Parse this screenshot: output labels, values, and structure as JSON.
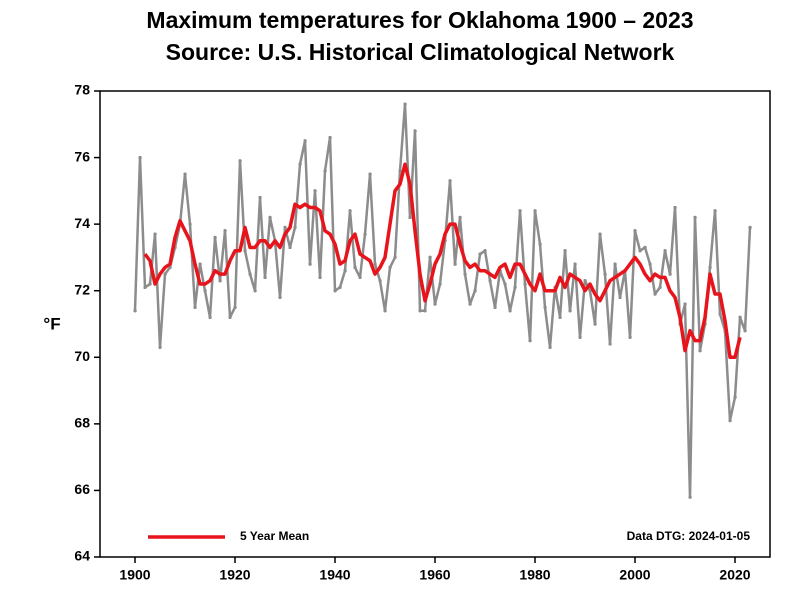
{
  "chart_data": {
    "type": "line",
    "title": "Maximum temperatures for Oklahoma 1900 – 2023",
    "subtitle": "Source: U.S. Historical Climatological Network",
    "y_label": "°F",
    "annotation": "Data DTG: 2024-01-05",
    "legend": "bottom-left",
    "grid": false,
    "xlim": [
      1893,
      2027
    ],
    "xticks": [
      1900,
      1920,
      1940,
      1960,
      1980,
      2000,
      2020
    ],
    "ylim": [
      64,
      78
    ],
    "yticks": [
      64,
      66,
      68,
      70,
      72,
      74,
      76,
      78
    ],
    "x": [
      1900,
      1901,
      1902,
      1903,
      1904,
      1905,
      1906,
      1907,
      1908,
      1909,
      1910,
      1911,
      1912,
      1913,
      1914,
      1915,
      1916,
      1917,
      1918,
      1919,
      1920,
      1921,
      1922,
      1923,
      1924,
      1925,
      1926,
      1927,
      1928,
      1929,
      1930,
      1931,
      1932,
      1933,
      1934,
      1935,
      1936,
      1937,
      1938,
      1939,
      1940,
      1941,
      1942,
      1943,
      1944,
      1945,
      1946,
      1947,
      1948,
      1949,
      1950,
      1951,
      1952,
      1953,
      1954,
      1955,
      1956,
      1957,
      1958,
      1959,
      1960,
      1961,
      1962,
      1963,
      1964,
      1965,
      1966,
      1967,
      1968,
      1969,
      1970,
      1971,
      1972,
      1973,
      1974,
      1975,
      1976,
      1977,
      1978,
      1979,
      1980,
      1981,
      1982,
      1983,
      1984,
      1985,
      1986,
      1987,
      1988,
      1989,
      1990,
      1991,
      1992,
      1993,
      1994,
      1995,
      1996,
      1997,
      1998,
      1999,
      2000,
      2001,
      2002,
      2003,
      2004,
      2005,
      2006,
      2007,
      2008,
      2009,
      2010,
      2011,
      2012,
      2013,
      2014,
      2015,
      2016,
      2017,
      2018,
      2019,
      2020,
      2021,
      2022,
      2023
    ],
    "series": [
      {
        "color": "#8c8c8c",
        "values": [
          71.4,
          76.0,
          72.1,
          72.2,
          73.7,
          70.3,
          72.5,
          72.7,
          73.3,
          74.0,
          75.5,
          74.0,
          71.5,
          72.8,
          72.0,
          71.2,
          73.6,
          72.3,
          73.8,
          71.2,
          71.5,
          75.9,
          73.2,
          72.5,
          72.0,
          74.8,
          72.4,
          74.2,
          73.5,
          71.8,
          73.9,
          73.3,
          73.9,
          75.8,
          76.5,
          72.8,
          75.0,
          72.4,
          75.6,
          76.6,
          72.0,
          72.1,
          72.6,
          74.4,
          72.7,
          72.4,
          73.7,
          75.5,
          72.8,
          72.3,
          71.4,
          72.7,
          73.0,
          75.6,
          77.6,
          74.2,
          76.8,
          71.4,
          71.4,
          73.0,
          71.6,
          72.2,
          73.5,
          75.3,
          72.8,
          74.2,
          72.5,
          71.6,
          72.0,
          73.1,
          73.2,
          72.3,
          71.5,
          72.6,
          72.2,
          71.4,
          72.1,
          74.4,
          72.2,
          70.5,
          74.4,
          73.4,
          71.5,
          70.3,
          72.1,
          71.2,
          73.2,
          71.4,
          72.8,
          70.6,
          72.3,
          72.0,
          71.0,
          73.7,
          72.5,
          70.4,
          72.8,
          71.8,
          72.6,
          70.6,
          73.8,
          73.2,
          73.3,
          72.8,
          71.9,
          72.1,
          73.2,
          72.5,
          74.5,
          71.0,
          71.6,
          65.8,
          74.2,
          70.2,
          71.0,
          72.7,
          74.4,
          71.3,
          70.8,
          68.1,
          68.8,
          71.2,
          70.8,
          73.9
        ]
      },
      {
        "name": "5 Year Mean",
        "color": "#e8141c",
        "values": [
          null,
          null,
          73.1,
          72.9,
          72.2,
          72.5,
          72.7,
          72.8,
          73.6,
          74.1,
          73.8,
          73.5,
          72.8,
          72.2,
          72.2,
          72.3,
          72.6,
          72.5,
          72.5,
          72.9,
          73.2,
          73.2,
          73.9,
          73.3,
          73.3,
          73.5,
          73.5,
          73.3,
          73.5,
          73.3,
          73.7,
          73.9,
          74.6,
          74.5,
          74.6,
          74.5,
          74.5,
          74.4,
          73.8,
          73.7,
          73.4,
          72.8,
          72.9,
          73.5,
          73.7,
          73.1,
          73.0,
          72.9,
          72.5,
          72.7,
          73.0,
          74.0,
          75.0,
          75.2,
          75.8,
          75.2,
          73.8,
          72.5,
          71.7,
          72.2,
          72.8,
          73.1,
          73.7,
          74.0,
          74.0,
          73.4,
          72.9,
          72.7,
          72.8,
          72.6,
          72.6,
          72.5,
          72.4,
          72.7,
          72.8,
          72.4,
          72.8,
          72.8,
          72.5,
          72.2,
          72.0,
          72.5,
          72.0,
          72.0,
          72.0,
          72.4,
          72.1,
          72.5,
          72.4,
          72.3,
          72.0,
          72.2,
          71.9,
          71.7,
          72.0,
          72.3,
          72.4,
          72.5,
          72.6,
          72.8,
          73.0,
          72.8,
          72.5,
          72.3,
          72.5,
          72.4,
          72.4,
          72.0,
          71.8,
          71.2,
          70.2,
          70.8,
          70.5,
          70.5,
          71.2,
          72.5,
          71.9,
          71.9,
          71.1,
          70.0,
          70.0,
          70.6,
          null,
          null
        ]
      }
    ]
  }
}
